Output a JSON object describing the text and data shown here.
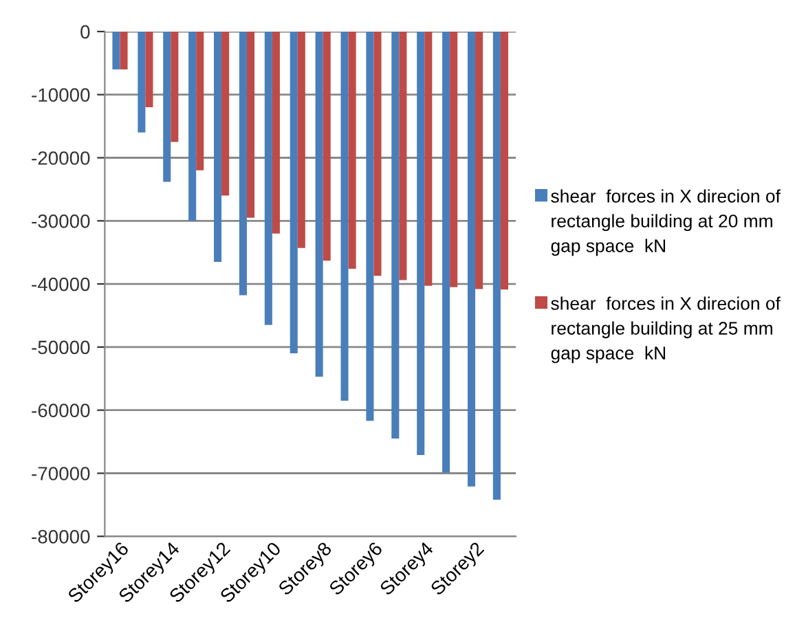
{
  "chart_data": {
    "type": "bar",
    "categories": [
      "Storey16",
      null,
      "Storey14",
      null,
      "Storey12",
      null,
      "Storey10",
      null,
      "Storey8",
      null,
      "Storey6",
      null,
      "Storey4",
      null,
      "Storey2",
      null
    ],
    "series": [
      {
        "name": "shear  forces in X direcion of rectangle building at 20 mm  gap space  kN",
        "color": "#4a7ebb",
        "values": [
          -6000,
          -16000,
          -23800,
          -30000,
          -36500,
          -41800,
          -46500,
          -51000,
          -54700,
          -58500,
          -61700,
          -64500,
          -67100,
          -69900,
          -72100,
          -74200
        ]
      },
      {
        "name": "shear  forces in X direcion of rectangle building at 25 mm  gap space  kN",
        "color": "#be4b48",
        "values": [
          -6000,
          -12000,
          -17500,
          -22000,
          -26000,
          -29500,
          -32000,
          -34300,
          -36300,
          -37600,
          -38700,
          -39400,
          -40300,
          -40500,
          -40800,
          -40900
        ]
      }
    ],
    "ylim": [
      -80000,
      0
    ],
    "yticks": [
      -80000,
      -70000,
      -60000,
      -50000,
      -40000,
      -30000,
      -20000,
      -10000,
      0
    ],
    "grid": "y",
    "legend": "right"
  }
}
